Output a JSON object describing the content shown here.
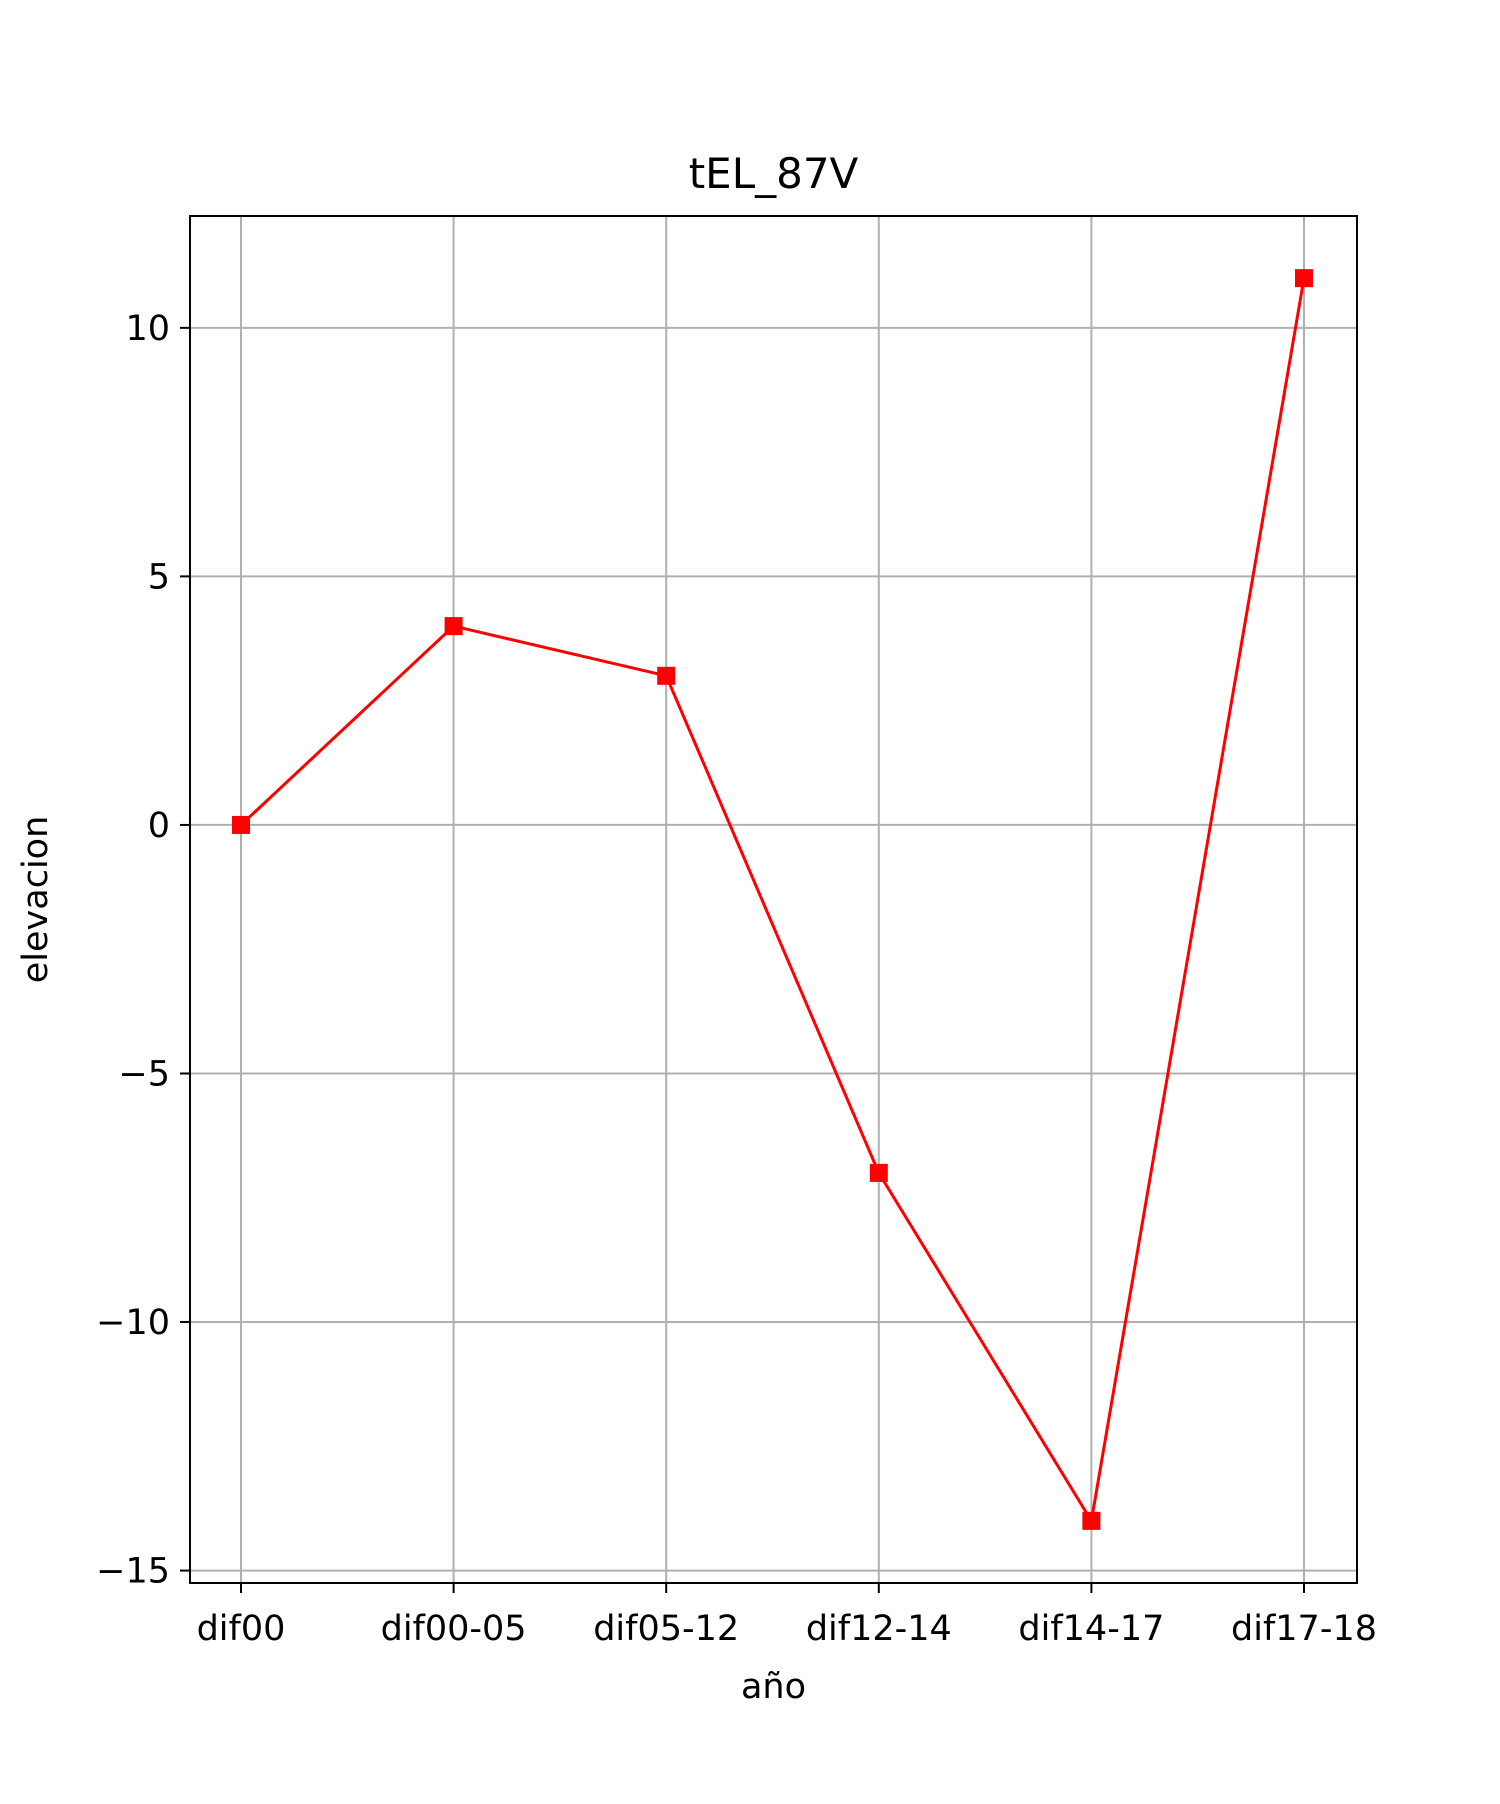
{
  "chart_data": {
    "type": "line",
    "title": "tEL_87V",
    "xlabel": "año",
    "ylabel": "elevacion",
    "categories": [
      "dif00",
      "dif00-05",
      "dif05-12",
      "dif12-14",
      "dif14-17",
      "dif17-18"
    ],
    "series": [
      {
        "values": [
          0,
          4,
          3,
          -7,
          -14,
          11
        ],
        "color": "#ff0000",
        "marker": "square"
      }
    ],
    "yticks": [
      10,
      5,
      0,
      -5,
      -10,
      -15
    ],
    "ytick_labels": [
      "10",
      "5",
      "0",
      "−5",
      "−10",
      "−15"
    ],
    "ylim": [
      -15.25,
      12.25
    ],
    "grid": true,
    "grid_color": "#b0b0b0"
  }
}
